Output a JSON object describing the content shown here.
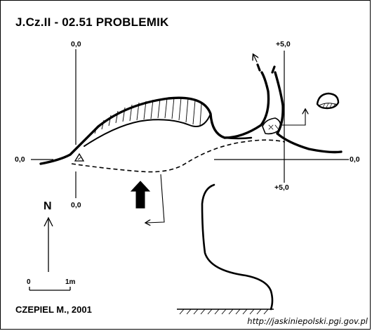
{
  "title": "J.Cz.II - 02.51  PROBLEMIK",
  "axis_labels": {
    "left_top": "0,0",
    "left_side": "0,0",
    "left_bottom": "0,0",
    "right_top": "+5,0",
    "right_side": "0,0",
    "right_bottom": "+5,0"
  },
  "north_label": "N",
  "scale": {
    "start": "0",
    "end": "1m"
  },
  "author": "CZEPIEL M., 2001",
  "url": "http://jaskiniepolski.pgi.gov.pl"
}
